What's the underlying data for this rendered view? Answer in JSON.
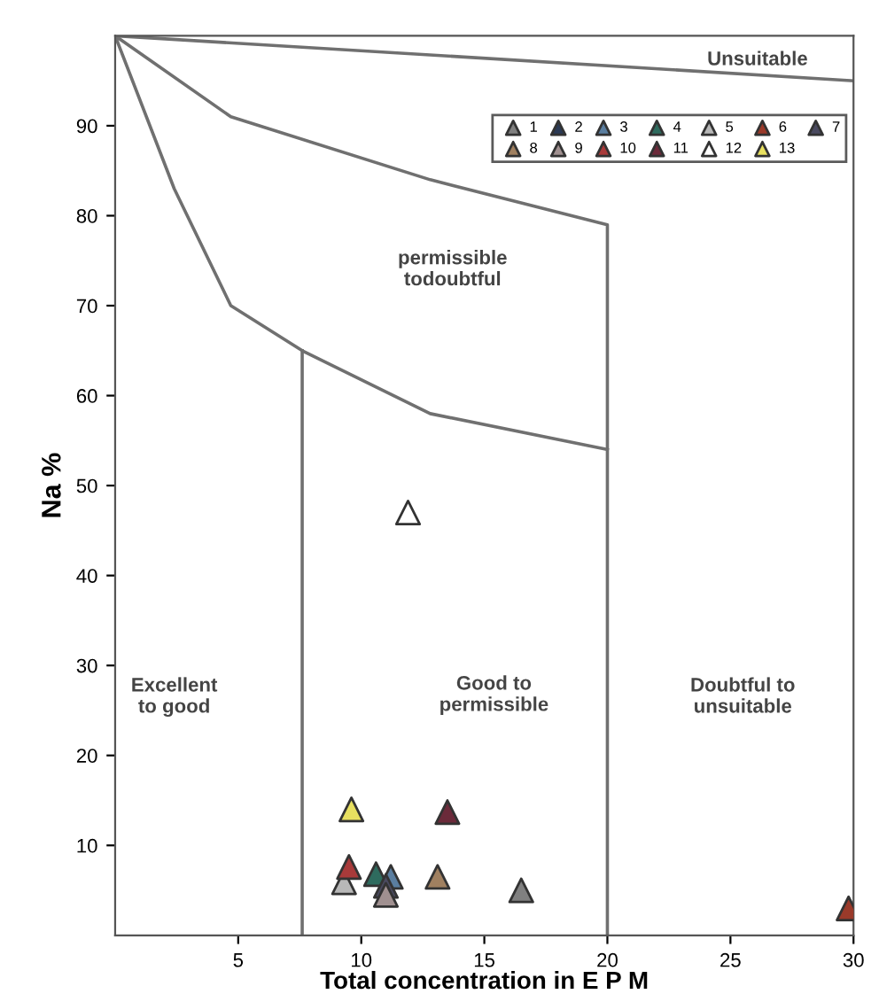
{
  "chart_data": {
    "type": "scatter",
    "xlabel": "Total concentration in E P M",
    "ylabel": "Na %",
    "xlim": [
      0,
      30
    ],
    "ylim": [
      0,
      100
    ],
    "xticks": [
      5,
      10,
      15,
      20,
      25,
      30
    ],
    "yticks": [
      10,
      20,
      30,
      40,
      50,
      60,
      70,
      80,
      90
    ],
    "marker": "triangle",
    "grid": false,
    "legend": "top right",
    "series": [
      {
        "name": "1",
        "color": "#808080",
        "x": [
          16.5
        ],
        "values": [
          5
        ]
      },
      {
        "name": "2",
        "color": "#2b3a55",
        "x": [
          null
        ],
        "values": [
          null
        ]
      },
      {
        "name": "3",
        "color": "#5a7ea0",
        "x": [
          11.2
        ],
        "values": [
          6.5
        ]
      },
      {
        "name": "4",
        "color": "#2e6b5e",
        "x": [
          10.6
        ],
        "values": [
          6.8
        ]
      },
      {
        "name": "5",
        "color": "#b8b8b8",
        "x": [
          9.3
        ],
        "values": [
          5.9
        ]
      },
      {
        "name": "6",
        "color": "#9a3a2a",
        "x": [
          29.8
        ],
        "values": [
          3
        ]
      },
      {
        "name": "7",
        "color": "#4a4a60",
        "x": [
          11
        ],
        "values": [
          5.5
        ]
      },
      {
        "name": "8",
        "color": "#a08060",
        "x": [
          13.1
        ],
        "values": [
          6.5
        ]
      },
      {
        "name": "9",
        "color": "#a09090",
        "x": [
          11
        ],
        "values": [
          4.5
        ]
      },
      {
        "name": "10",
        "color": "#a83a3a",
        "x": [
          9.5
        ],
        "values": [
          7.6
        ]
      },
      {
        "name": "11",
        "color": "#6b2a3a",
        "x": [
          13.5
        ],
        "values": [
          13.7
        ]
      },
      {
        "name": "12",
        "color": "#ffffff",
        "x": [
          11.9
        ],
        "values": [
          47
        ]
      },
      {
        "name": "13",
        "color": "#e8e060",
        "x": [
          9.6
        ],
        "values": [
          14
        ]
      },
      {
        "type": "line",
        "marker": "none",
        "color": "#707070",
        "x": [
          0,
          30
        ],
        "values": [
          100,
          95
        ]
      },
      {
        "type": "line",
        "marker": "none",
        "color": "#707070",
        "x": [
          0,
          4.7,
          12.8,
          20,
          20
        ],
        "values": [
          100,
          91,
          84,
          79,
          0
        ]
      },
      {
        "type": "line",
        "marker": "none",
        "color": "#707070",
        "x": [
          0,
          2.4,
          4.7,
          7.6,
          12.8,
          20
        ],
        "values": [
          100,
          83,
          70,
          65,
          58,
          54
        ]
      },
      {
        "type": "line",
        "marker": "none",
        "color": "#707070",
        "x": [
          7.6,
          7.6
        ],
        "values": [
          65,
          0
        ]
      }
    ],
    "annotations": [
      "Unsuitable",
      "permissible\ntodoubtful",
      "Excellent\nto good",
      "Good to\npermissible",
      "Doubtful to\nunsuitable"
    ]
  }
}
